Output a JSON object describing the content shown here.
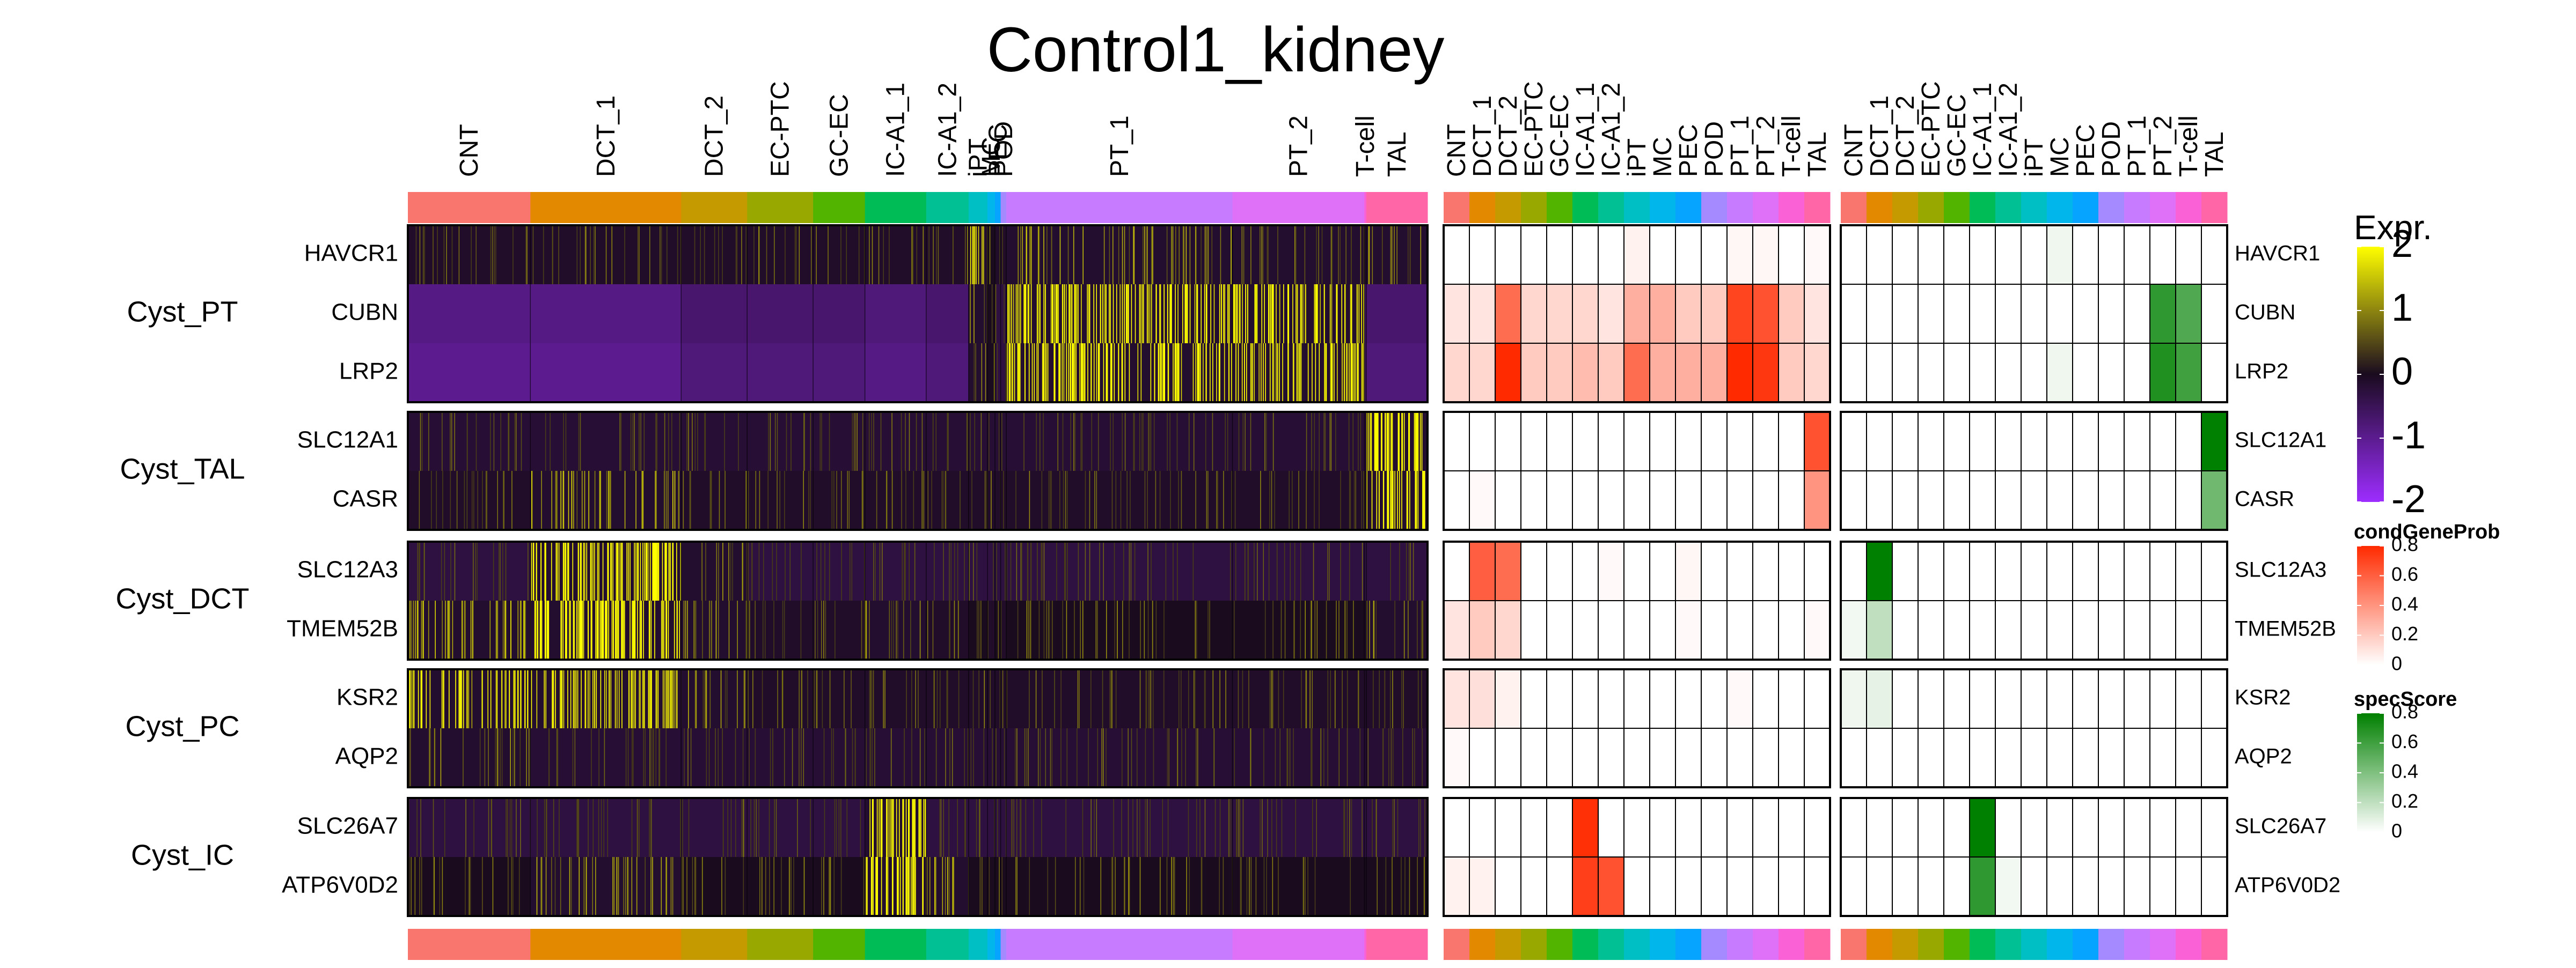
{
  "chart_data": {
    "type": "heatmap",
    "title": "Control1_kidney",
    "cell_types": [
      "CNT",
      "DCT_1",
      "DCT_2",
      "EC-PTC",
      "GC-EC",
      "IC-A1_1",
      "IC-A1_2",
      "iPT",
      "MC",
      "PEC",
      "POD",
      "PT_1",
      "PT_2",
      "T-cell",
      "TAL"
    ],
    "cell_type_colors": {
      "CNT": "#F8766D",
      "DCT_1": "#E38900",
      "DCT_2": "#C49A00",
      "EC-PTC": "#99A800",
      "GC-EC": "#53B400",
      "IC-A1_1": "#00BC56",
      "IC-A1_2": "#00C094",
      "iPT": "#00BFC4",
      "MC": "#00B6EB",
      "PEC": "#06A4FF",
      "POD": "#A58AFF",
      "PT_1": "#C77CFF",
      "PT_2": "#DF70F8",
      "T-cell": "#FB61D7",
      "TAL": "#FF66A8"
    },
    "single_cell_column_fraction": {
      "CNT": 0.13,
      "DCT_1": 0.16,
      "DCT_2": 0.07,
      "EC-PTC": 0.07,
      "GC-EC": 0.055,
      "IC-A1_1": 0.065,
      "IC-A1_2": 0.045,
      "iPT": 0.02,
      "MC": 0.008,
      "PEC": 0.006,
      "POD": 0.006,
      "PT_1": 0.24,
      "PT_2": 0.14,
      "T-cell": 0.002,
      "TAL": 0.065
    },
    "gene_groups": [
      {
        "name": "Cyst_PT",
        "genes": [
          "HAVCR1",
          "CUBN",
          "LRP2"
        ]
      },
      {
        "name": "Cyst_TAL",
        "genes": [
          "SLC12A1",
          "CASR"
        ]
      },
      {
        "name": "Cyst_DCT",
        "genes": [
          "SLC12A3",
          "TMEM52B"
        ]
      },
      {
        "name": "Cyst_PC",
        "genes": [
          "KSR2",
          "AQP2"
        ]
      },
      {
        "name": "Cyst_IC",
        "genes": [
          "SLC26A7",
          "ATP6V0D2"
        ]
      }
    ],
    "expression_by_cell_type": {
      "HAVCR1": [
        -0.1,
        -0.1,
        -0.1,
        -0.1,
        -0.1,
        -0.1,
        -0.1,
        1.2,
        0.0,
        -0.1,
        -0.1,
        0.3,
        0.1,
        -0.1,
        0.1
      ],
      "CUBN": [
        -0.9,
        -0.9,
        -0.7,
        -0.7,
        -0.7,
        -0.8,
        -0.7,
        0.2,
        0.0,
        -0.3,
        -0.3,
        1.3,
        1.2,
        -0.5,
        -0.7
      ],
      "LRP2": [
        -1.0,
        -1.0,
        -0.8,
        -0.8,
        -0.8,
        -0.9,
        -0.8,
        0.2,
        0.0,
        -0.3,
        -0.3,
        1.3,
        1.2,
        -0.5,
        -0.8
      ],
      "SLC12A1": [
        -0.2,
        -0.2,
        -0.2,
        -0.2,
        -0.2,
        -0.2,
        -0.2,
        -0.2,
        -0.2,
        -0.2,
        -0.2,
        -0.2,
        -0.2,
        -0.2,
        2.0
      ],
      "CASR": [
        -0.1,
        0.5,
        -0.1,
        -0.1,
        -0.1,
        -0.1,
        -0.1,
        -0.1,
        -0.1,
        -0.1,
        -0.1,
        -0.1,
        -0.1,
        -0.1,
        1.5
      ],
      "SLC12A3": [
        -0.3,
        2.0,
        0.1,
        -0.3,
        -0.3,
        -0.3,
        -0.3,
        -0.3,
        -0.3,
        -0.3,
        -0.3,
        -0.3,
        -0.3,
        -0.3,
        -0.3
      ],
      "TMEM52B": [
        0.6,
        1.5,
        0.3,
        -0.1,
        -0.1,
        0.1,
        -0.1,
        0.0,
        -0.1,
        0.0,
        -0.1,
        0.0,
        0.0,
        -0.1,
        0.2
      ],
      "KSR2": [
        1.0,
        1.2,
        0.2,
        -0.1,
        -0.1,
        -0.1,
        -0.1,
        -0.1,
        -0.1,
        -0.1,
        -0.1,
        -0.1,
        -0.1,
        -0.1,
        -0.1
      ],
      "AQP2": [
        0.1,
        -0.2,
        -0.2,
        -0.2,
        -0.2,
        -0.2,
        -0.2,
        -0.2,
        -0.2,
        -0.2,
        -0.2,
        -0.2,
        -0.2,
        -0.2,
        -0.2
      ],
      "SLC26A7": [
        -0.3,
        -0.3,
        -0.3,
        -0.3,
        -0.3,
        2.0,
        -0.3,
        -0.3,
        -0.3,
        -0.3,
        -0.3,
        -0.3,
        -0.3,
        -0.3,
        -0.3
      ],
      "ATP6V0D2": [
        0.0,
        0.3,
        0.0,
        0.0,
        0.0,
        2.0,
        0.4,
        0.0,
        0.0,
        0.0,
        0.0,
        0.0,
        0.0,
        0.0,
        0.0
      ]
    },
    "condGeneProb": {
      "HAVCR1": [
        0,
        0,
        0,
        0,
        0,
        0,
        0,
        0.05,
        0,
        0,
        0,
        0.03,
        0.03,
        0,
        0.02
      ],
      "CUBN": [
        0.1,
        0.1,
        0.55,
        0.15,
        0.15,
        0.15,
        0.1,
        0.3,
        0.3,
        0.2,
        0.2,
        0.7,
        0.65,
        0.2,
        0.1
      ],
      "LRP2": [
        0.15,
        0.15,
        0.82,
        0.2,
        0.2,
        0.25,
        0.2,
        0.55,
        0.3,
        0.3,
        0.3,
        0.85,
        0.75,
        0.2,
        0.15
      ],
      "SLC12A1": [
        0,
        0,
        0,
        0,
        0,
        0,
        0,
        0,
        0,
        0,
        0,
        0,
        0,
        0,
        0.65
      ],
      "CASR": [
        0,
        0.02,
        0,
        0,
        0,
        0,
        0,
        0,
        0,
        0,
        0,
        0,
        0,
        0,
        0.4
      ],
      "SLC12A3": [
        0,
        0.6,
        0.55,
        0,
        0,
        0,
        0.02,
        0,
        0,
        0.03,
        0,
        0,
        0,
        0,
        0
      ],
      "TMEM52B": [
        0.1,
        0.2,
        0.15,
        0,
        0,
        0,
        0,
        0,
        0,
        0.02,
        0,
        0,
        0,
        0,
        0.02
      ],
      "KSR2": [
        0.1,
        0.12,
        0.05,
        0,
        0,
        0,
        0,
        0,
        0,
        0,
        0,
        0.02,
        0,
        0,
        0
      ],
      "AQP2": [
        0.02,
        0,
        0,
        0,
        0,
        0,
        0,
        0,
        0,
        0,
        0,
        0,
        0,
        0,
        0
      ],
      "SLC26A7": [
        0,
        0,
        0,
        0,
        0,
        0.78,
        0,
        0,
        0,
        0,
        0,
        0,
        0,
        0,
        0
      ],
      "ATP6V0D2": [
        0.05,
        0.05,
        0,
        0,
        0,
        0.72,
        0.65,
        0,
        0,
        0,
        0,
        0,
        0,
        0,
        0
      ]
    },
    "specScore": {
      "HAVCR1": [
        0,
        0,
        0,
        0,
        0,
        0,
        0,
        0,
        0.05,
        0,
        0,
        0,
        0,
        0,
        0
      ],
      "CUBN": [
        0,
        0,
        0,
        0,
        0,
        0,
        0,
        0,
        0,
        0,
        0,
        0,
        0.65,
        0.55,
        0
      ],
      "LRP2": [
        0,
        0,
        0,
        0,
        0,
        0,
        0,
        0,
        0.05,
        0,
        0,
        0,
        0.7,
        0.6,
        0
      ],
      "SLC12A1": [
        0,
        0,
        0,
        0,
        0,
        0,
        0,
        0,
        0,
        0,
        0,
        0,
        0,
        0,
        0.95
      ],
      "CASR": [
        0,
        0,
        0,
        0,
        0,
        0,
        0,
        0,
        0,
        0,
        0,
        0,
        0,
        0,
        0.45
      ],
      "SLC12A3": [
        0,
        0.85,
        0,
        0,
        0,
        0,
        0,
        0,
        0,
        0,
        0,
        0,
        0,
        0,
        0
      ],
      "TMEM52B": [
        0.04,
        0.2,
        0,
        0,
        0,
        0,
        0,
        0,
        0,
        0,
        0,
        0,
        0,
        0,
        0
      ],
      "KSR2": [
        0.05,
        0.08,
        0,
        0,
        0,
        0,
        0,
        0,
        0,
        0,
        0,
        0,
        0,
        0,
        0
      ],
      "AQP2": [
        0,
        0,
        0,
        0,
        0,
        0,
        0,
        0,
        0,
        0,
        0,
        0,
        0,
        0,
        0
      ],
      "SLC26A7": [
        0,
        0,
        0,
        0,
        0,
        0.92,
        0,
        0,
        0,
        0,
        0,
        0,
        0,
        0,
        0
      ],
      "ATP6V0D2": [
        0,
        0,
        0,
        0,
        0,
        0.65,
        0.04,
        0,
        0,
        0,
        0,
        0,
        0,
        0,
        0
      ]
    },
    "legend_expr": {
      "title": "Expr.",
      "ticks": [
        "2",
        "1",
        "0",
        "-1",
        "-2"
      ],
      "range": [
        -2,
        2
      ],
      "colors": [
        "#9D2DFF",
        "#1A0B1F",
        "#FFFF00"
      ]
    },
    "legend_cond": {
      "title": "condGeneProb",
      "ticks": [
        "0.8",
        "0.6",
        "0.4",
        "0.2",
        "0"
      ],
      "range": [
        0,
        0.8
      ],
      "colors": [
        "#FFFFFF",
        "#FF2A00"
      ]
    },
    "legend_spec": {
      "title": "specScore",
      "ticks": [
        "0.8",
        "0.6",
        "0.4",
        "0.2",
        "0"
      ],
      "range": [
        0,
        0.8
      ],
      "colors": [
        "#FFFFFF",
        "#008000"
      ]
    },
    "legend_placement": "right"
  }
}
